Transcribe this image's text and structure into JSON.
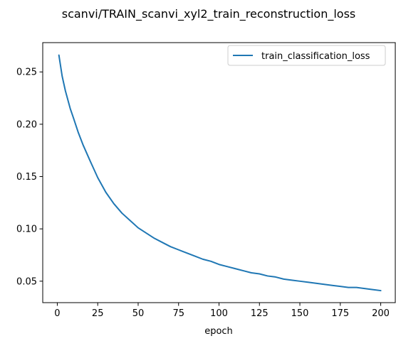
{
  "figure": {
    "title": "scanvi/TRAIN_scanvi_xyl2_train_reconstruction_loss"
  },
  "chart_data": {
    "type": "line",
    "title": "scanvi/TRAIN_scanvi_xyl2_train_reconstruction_loss",
    "xlabel": "epoch",
    "ylabel": "",
    "xlim": [
      -9,
      209
    ],
    "ylim": [
      0.0295,
      0.278
    ],
    "xticks": [
      0,
      25,
      50,
      75,
      100,
      125,
      150,
      175,
      200
    ],
    "xtick_labels": [
      "0",
      "25",
      "50",
      "75",
      "100",
      "125",
      "150",
      "175",
      "200"
    ],
    "yticks": [
      0.05,
      0.1,
      0.15,
      0.2,
      0.25
    ],
    "ytick_labels": [
      "0.05",
      "0.10",
      "0.15",
      "0.20",
      "0.25"
    ],
    "grid": false,
    "legend": {
      "placement": "upper-right"
    },
    "colors": {
      "series": "#1f77b4"
    },
    "series": [
      {
        "name": "train_classification_loss",
        "x": [
          1,
          3,
          5,
          8,
          10,
          13,
          16,
          20,
          25,
          30,
          35,
          40,
          45,
          50,
          55,
          60,
          65,
          70,
          75,
          80,
          85,
          90,
          95,
          100,
          105,
          110,
          115,
          120,
          125,
          130,
          135,
          140,
          145,
          150,
          155,
          160,
          165,
          170,
          175,
          180,
          185,
          190,
          195,
          200
        ],
        "values": [
          0.266,
          0.246,
          0.232,
          0.215,
          0.206,
          0.192,
          0.18,
          0.166,
          0.149,
          0.135,
          0.124,
          0.115,
          0.108,
          0.101,
          0.096,
          0.091,
          0.087,
          0.083,
          0.08,
          0.077,
          0.074,
          0.071,
          0.069,
          0.066,
          0.064,
          0.062,
          0.06,
          0.058,
          0.057,
          0.055,
          0.054,
          0.052,
          0.051,
          0.05,
          0.049,
          0.048,
          0.047,
          0.046,
          0.045,
          0.044,
          0.044,
          0.043,
          0.042,
          0.041
        ]
      }
    ]
  }
}
